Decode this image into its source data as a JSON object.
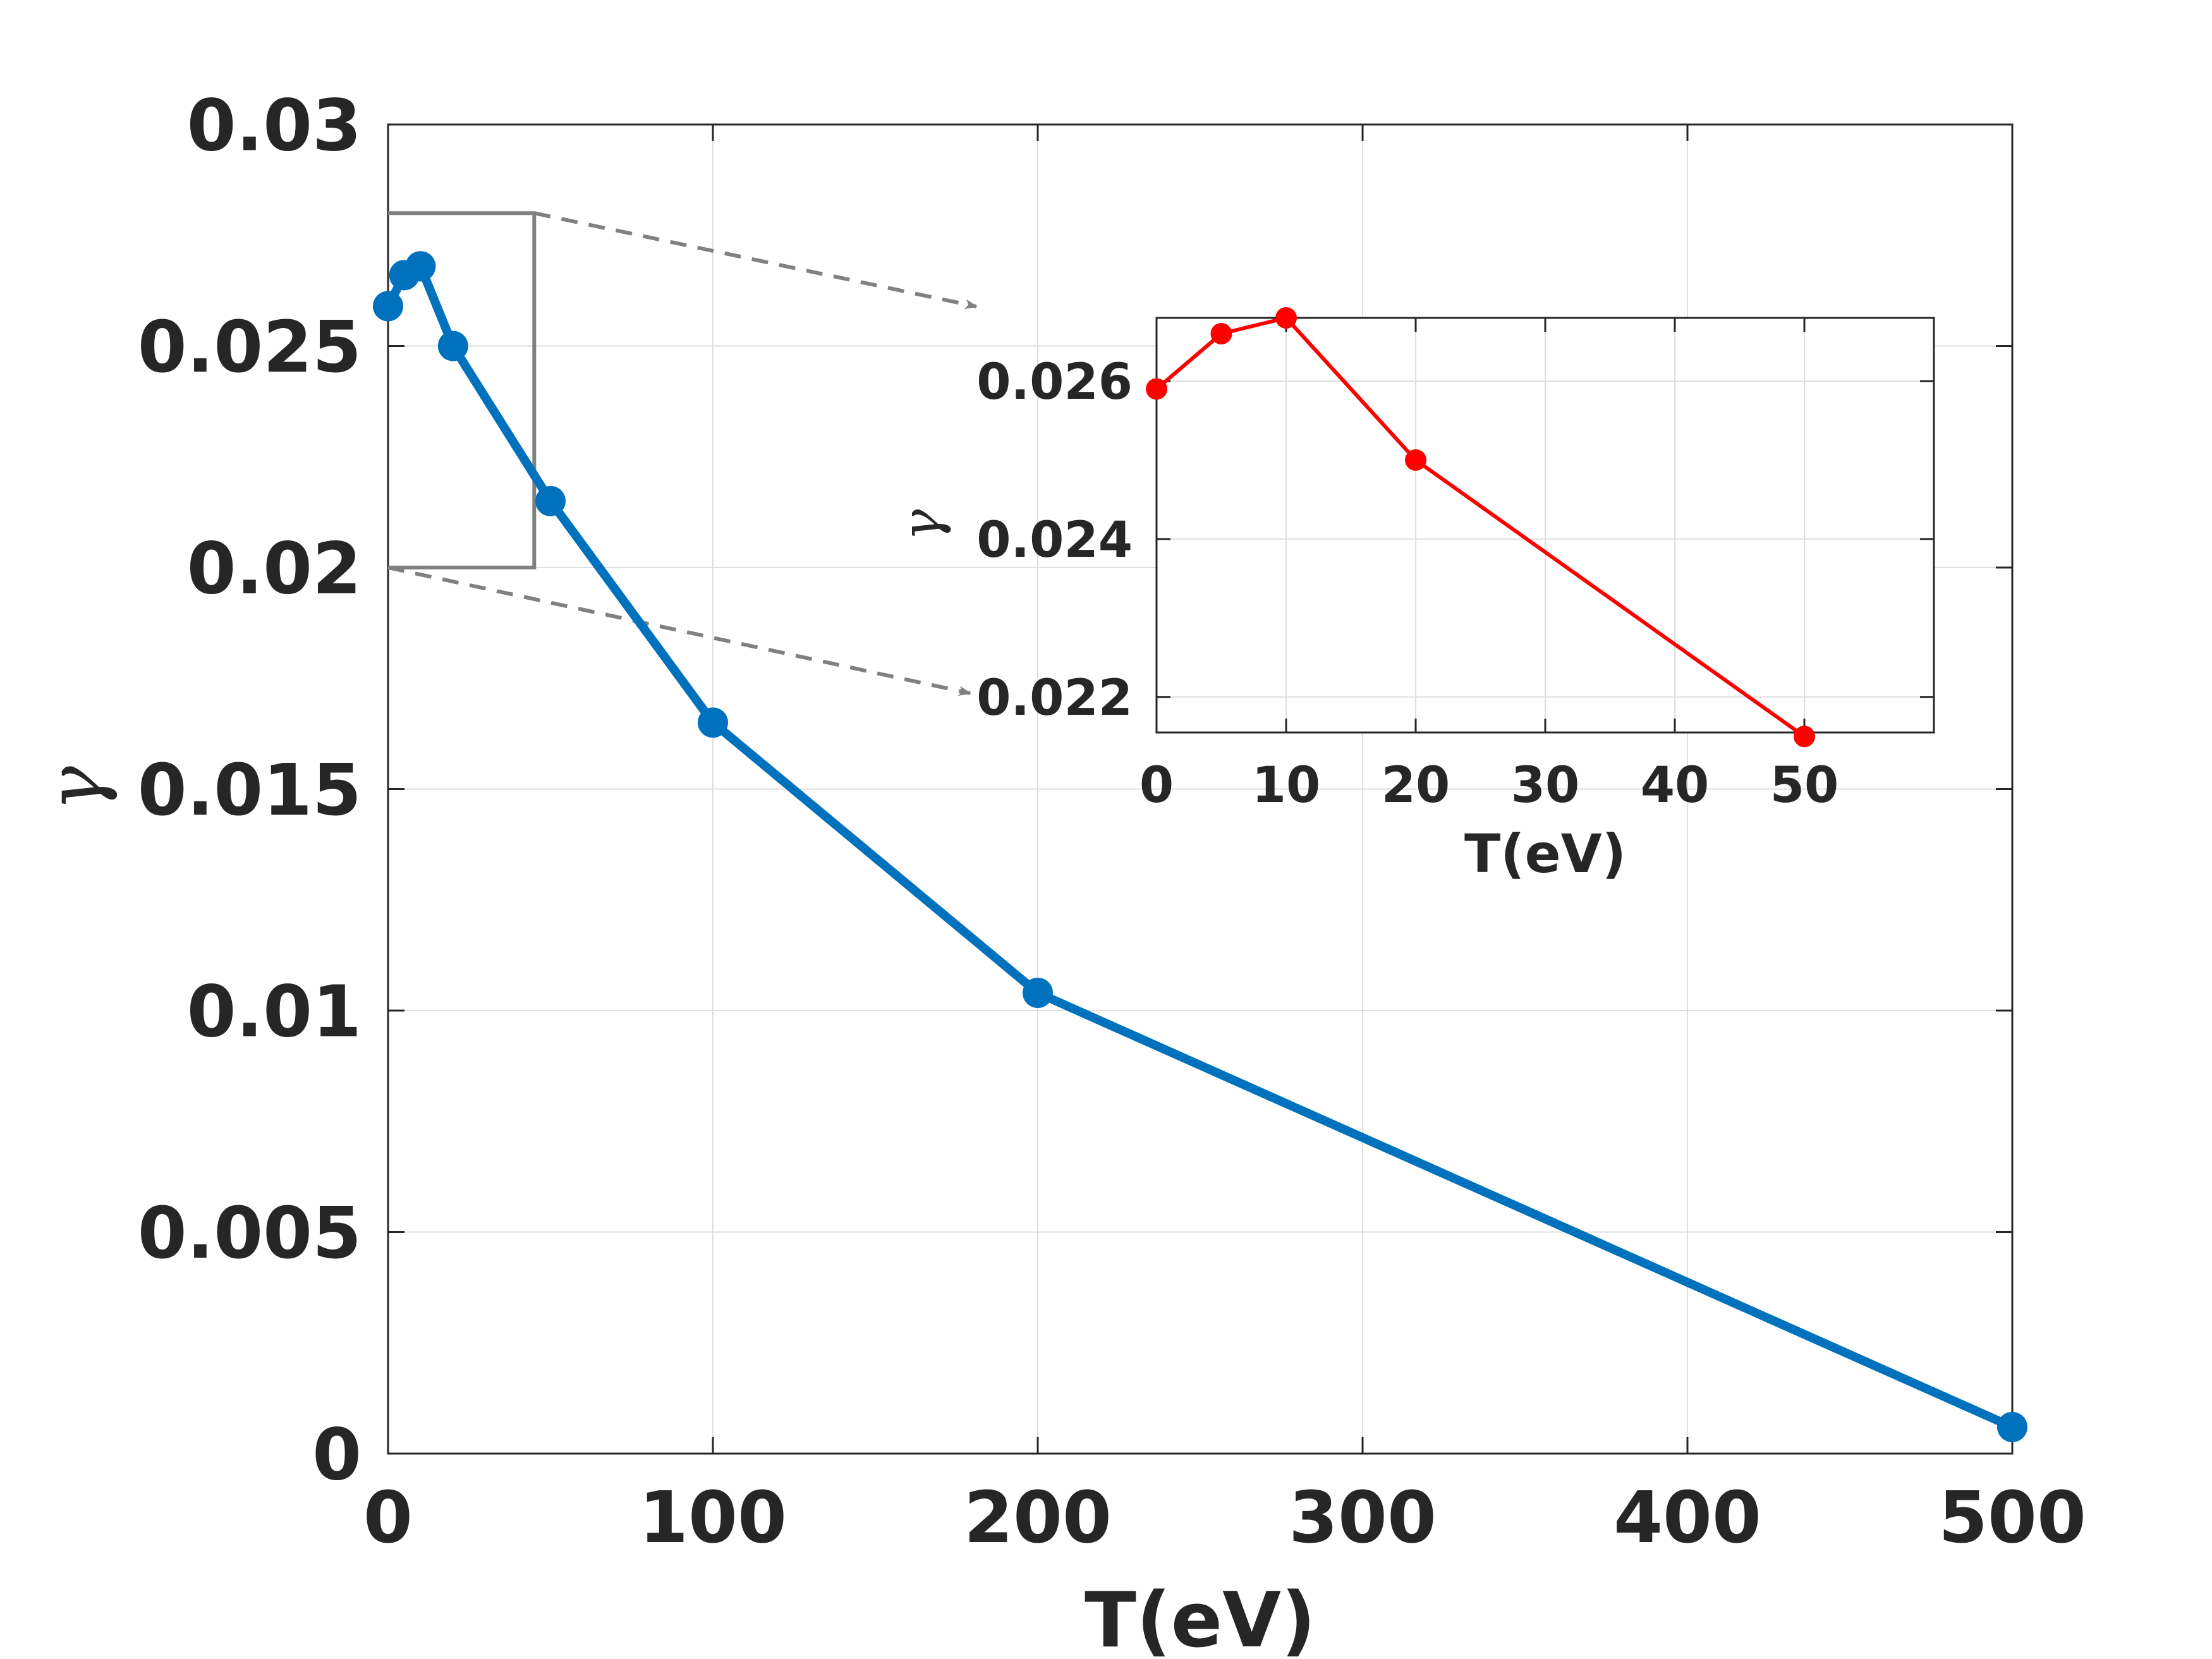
{
  "chart_data": [
    {
      "type": "line",
      "xlabel": "T(eV)",
      "ylabel": "γ",
      "xlim": [
        0,
        500
      ],
      "ylim": [
        0,
        0.03
      ],
      "grid": true,
      "xticks": [
        "0",
        "100",
        "200",
        "300",
        "400",
        "500"
      ],
      "yticks": [
        "0",
        "0.005",
        "0.01",
        "0.015",
        "0.02",
        "0.025",
        "0.03"
      ],
      "series": [
        {
          "color": "#0072BD",
          "marker": "circle",
          "x": [
            0,
            5,
            10,
            20,
            50,
            100,
            200,
            500
          ],
          "y": [
            0.0259,
            0.0266,
            0.0268,
            0.025,
            0.0215,
            0.0165,
            0.0104,
            0.0006
          ]
        }
      ],
      "zoom_region": {
        "x": [
          0,
          45
        ],
        "y": [
          0.02,
          0.028
        ]
      }
    },
    {
      "type": "line",
      "role": "inset",
      "xlabel": "T(eV)",
      "ylabel": "γ",
      "xlim": [
        0,
        60
      ],
      "ylim": [
        0.02155,
        0.0268
      ],
      "grid": true,
      "xticks": [
        "0",
        "10",
        "20",
        "30",
        "40",
        "50"
      ],
      "yticks": [
        "0.022",
        "0.024",
        "0.026"
      ],
      "series": [
        {
          "color": "#FF0000",
          "marker": "circle",
          "x": [
            0,
            5,
            10,
            20,
            50
          ],
          "y": [
            0.0259,
            0.0266,
            0.0268,
            0.025,
            0.0215
          ]
        }
      ]
    }
  ]
}
